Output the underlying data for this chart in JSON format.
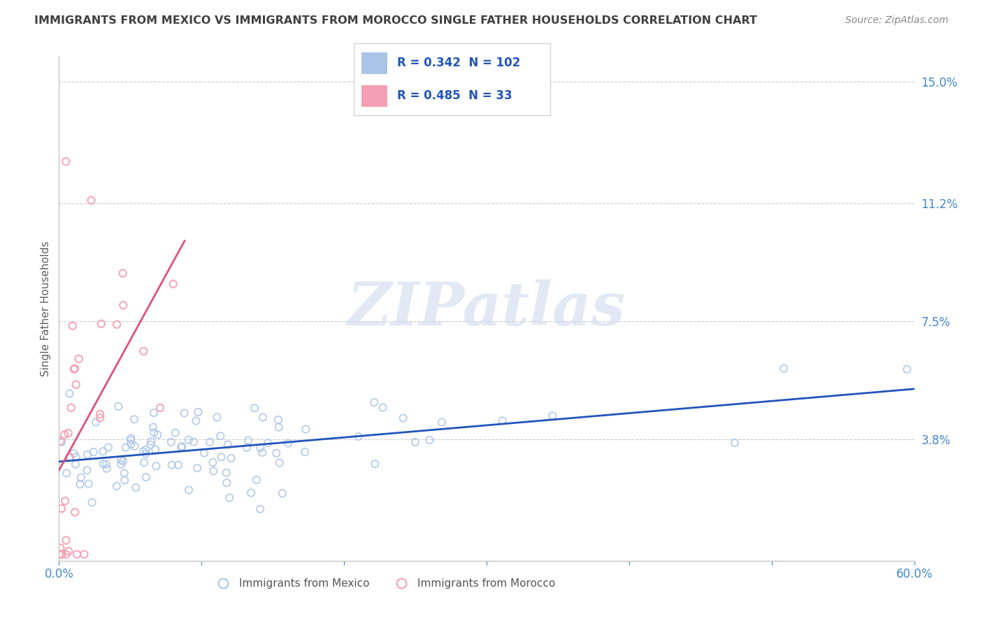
{
  "title": "IMMIGRANTS FROM MEXICO VS IMMIGRANTS FROM MOROCCO SINGLE FATHER HOUSEHOLDS CORRELATION CHART",
  "source": "Source: ZipAtlas.com",
  "ylabel": "Single Father Households",
  "watermark": "ZIPatlas",
  "xlim": [
    0.0,
    0.6
  ],
  "ylim": [
    0.0,
    0.158
  ],
  "ytick_values": [
    0.038,
    0.075,
    0.112,
    0.15
  ],
  "ytick_labels": [
    "3.8%",
    "7.5%",
    "11.2%",
    "15.0%"
  ],
  "mexico_color": "#aac4e8",
  "morocco_color": "#f4a0b4",
  "mexico_edge_color": "#7aaad8",
  "morocco_edge_color": "#e87898",
  "mexico_line_color": "#2255bb",
  "morocco_line_color": "#e0507a",
  "legend_mexico_R": "0.342",
  "legend_mexico_N": "102",
  "legend_morocco_R": "0.485",
  "legend_morocco_N": "33",
  "legend_label_mexico": "Immigrants from Mexico",
  "legend_label_morocco": "Immigrants from Morocco",
  "title_color": "#404040",
  "axis_color": "#4488cc",
  "value_color": "#2255bb",
  "background_color": "#ffffff",
  "grid_color": "#cccccc",
  "legend_border_color": "#cccccc"
}
